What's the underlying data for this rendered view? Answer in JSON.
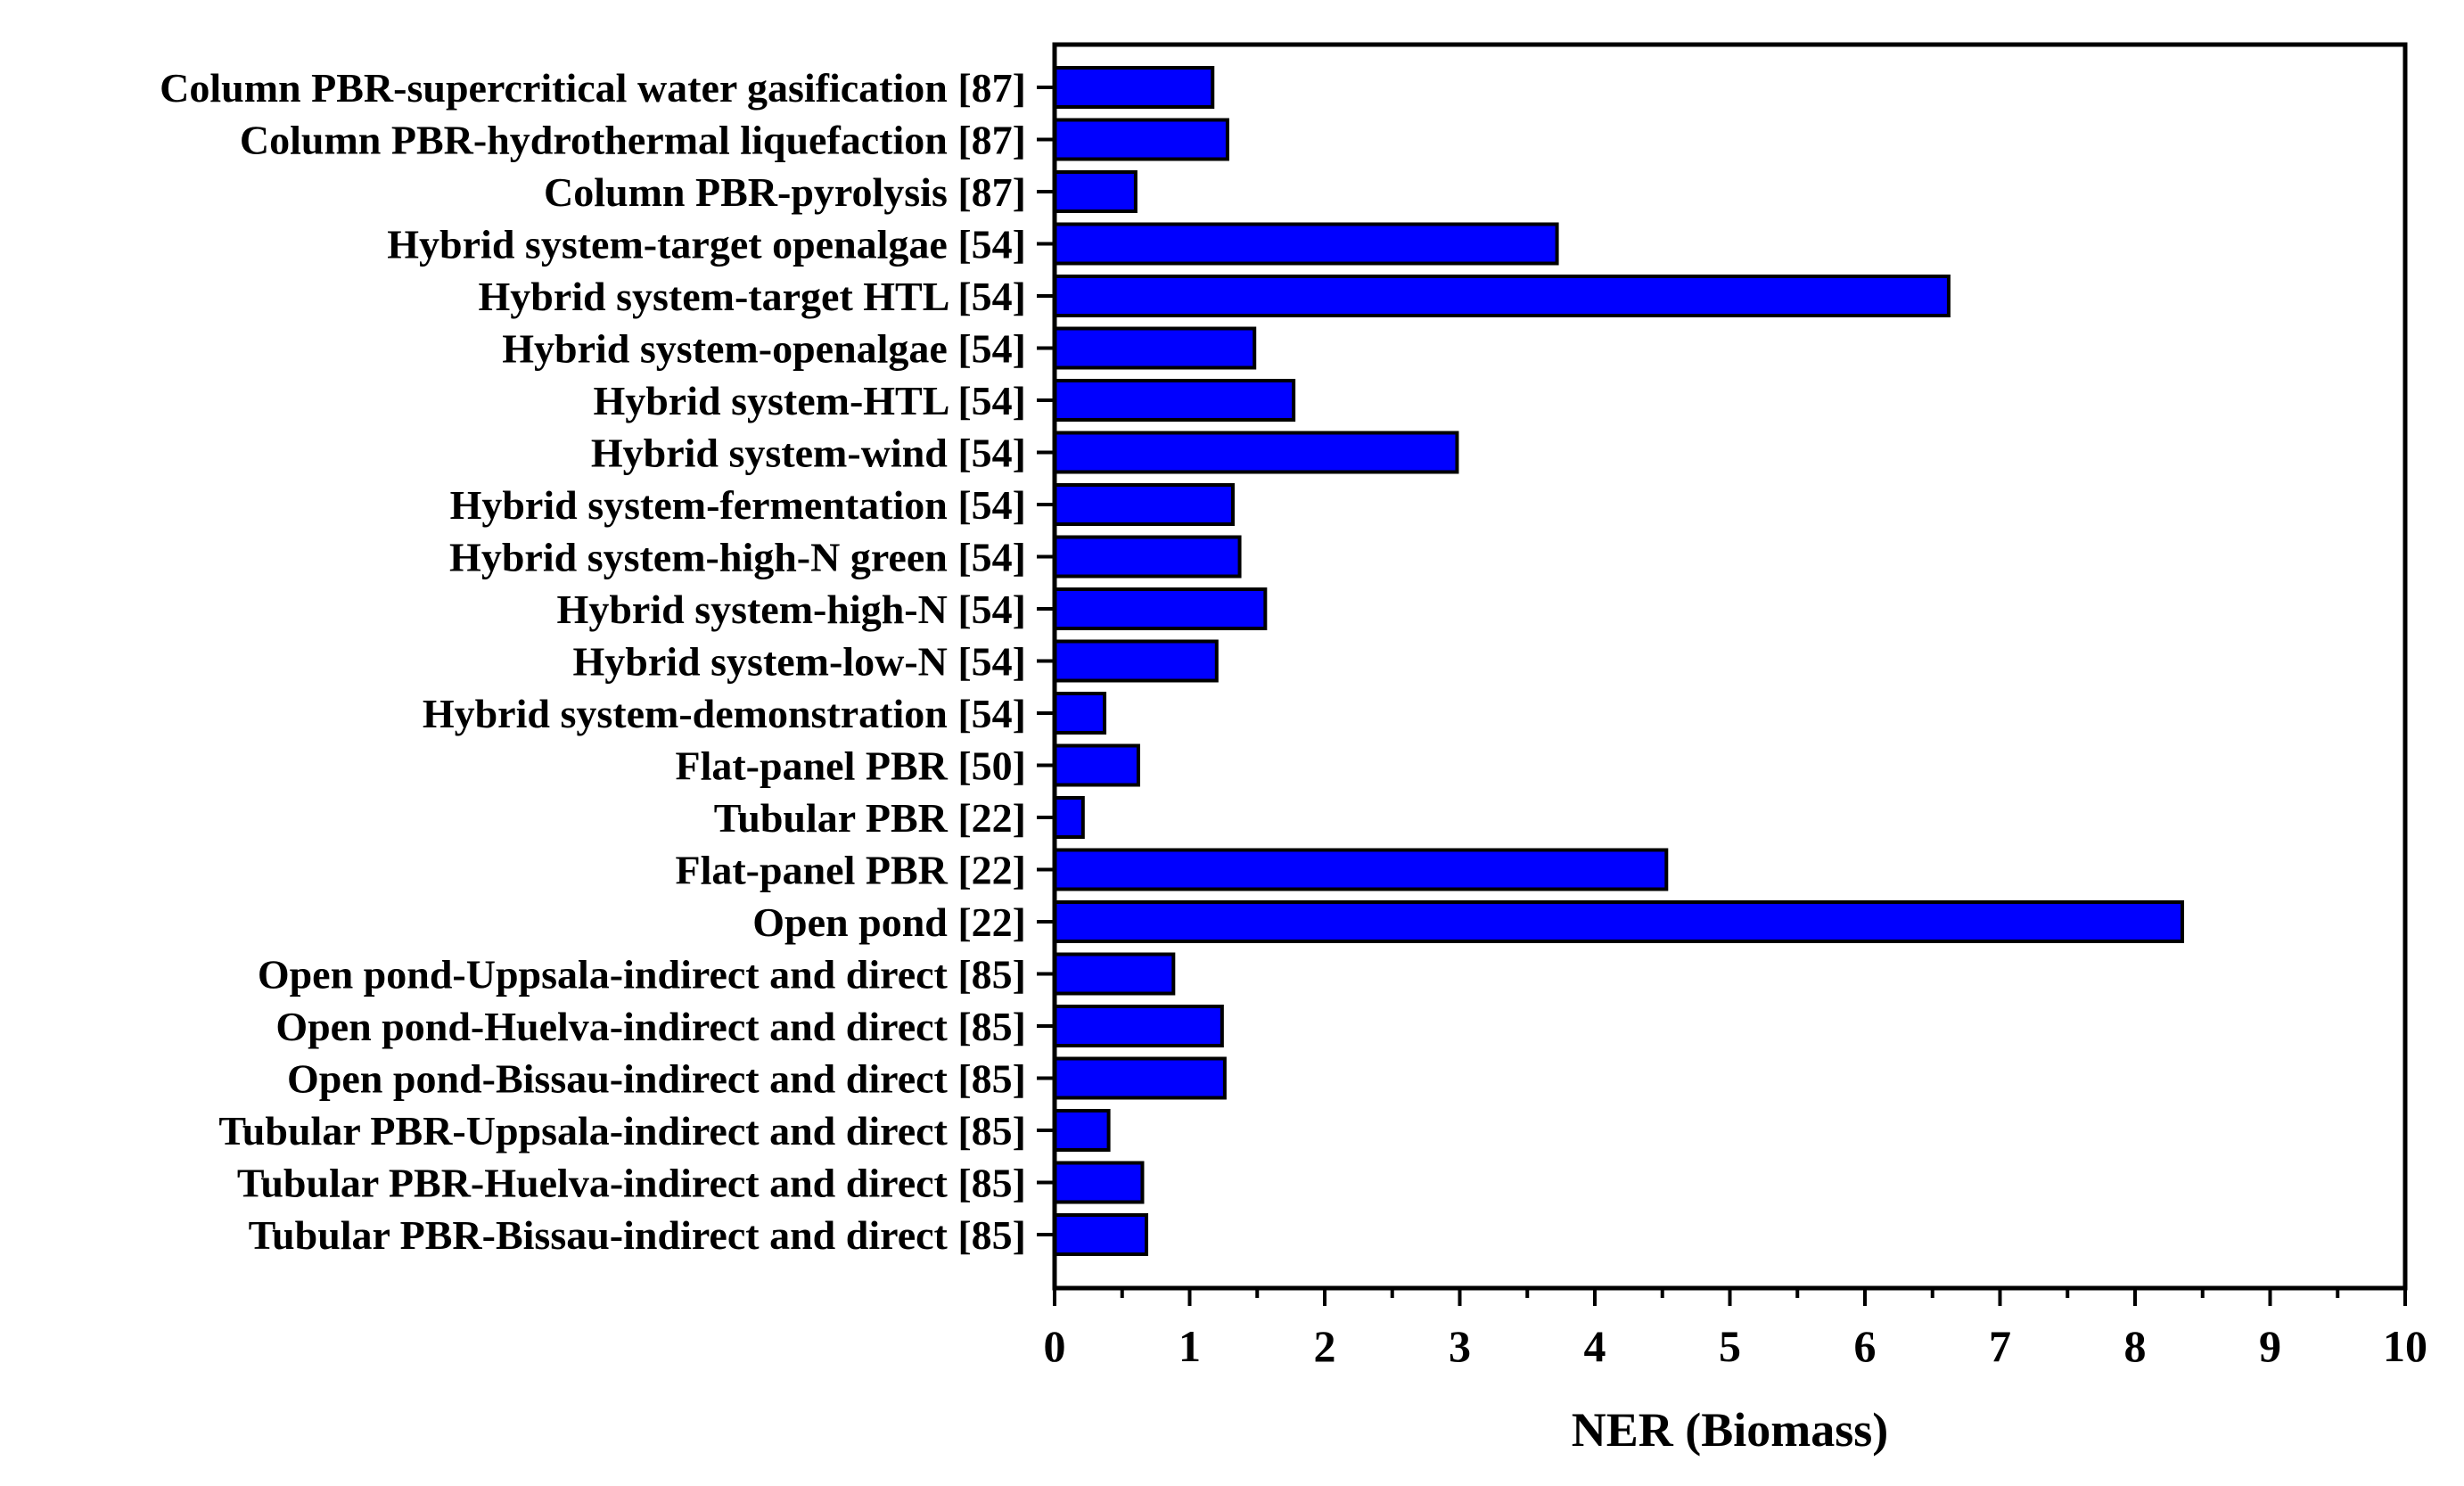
{
  "chart_data": {
    "type": "bar",
    "orientation": "horizontal",
    "title": "",
    "xlabel": "NER (Biomass)",
    "ylabel": "",
    "xlim": [
      0,
      10
    ],
    "xticks": [
      "0",
      "1",
      "2",
      "3",
      "4",
      "5",
      "6",
      "7",
      "8",
      "9",
      "10"
    ],
    "grid": false,
    "bar_color": "#0000ff",
    "categories": [
      "Column PBR-supercritical water gasification [87]",
      "Column PBR-hydrothermal liquefaction [87]",
      "Column PBR-pyrolysis [87]",
      "Hybrid system-target openalgae [54]",
      "Hybrid system-target HTL [54]",
      "Hybrid system-openalgae [54]",
      "Hybrid system-HTL [54]",
      "Hybrid system-wind [54]",
      "Hybrid system-fermentation [54]",
      "Hybrid system-high-N green [54]",
      "Hybrid system-high-N [54]",
      "Hybrid system-low-N [54]",
      "Hybrid system-demonstration [54]",
      "Flat-panel PBR [50]",
      "Tubular PBR [22]",
      "Flat-panel PBR [22]",
      "Open pond [22]",
      "Open pond-Uppsala-indirect and direct [85]",
      "Open pond-Huelva-indirect and direct [85]",
      "Open pond-Bissau-indirect and direct [85]",
      "Tubular PBR-Uppsala-indirect and direct [85]",
      "Tubular PBR-Huelva-indirect and direct [85]",
      "Tubular PBR-Bissau-indirect and direct [85]"
    ],
    "values": [
      1.17,
      1.28,
      0.6,
      3.72,
      6.62,
      1.48,
      1.77,
      2.98,
      1.32,
      1.37,
      1.56,
      1.2,
      0.37,
      0.62,
      0.21,
      4.53,
      8.35,
      0.88,
      1.24,
      1.26,
      0.4,
      0.65,
      0.68
    ]
  }
}
